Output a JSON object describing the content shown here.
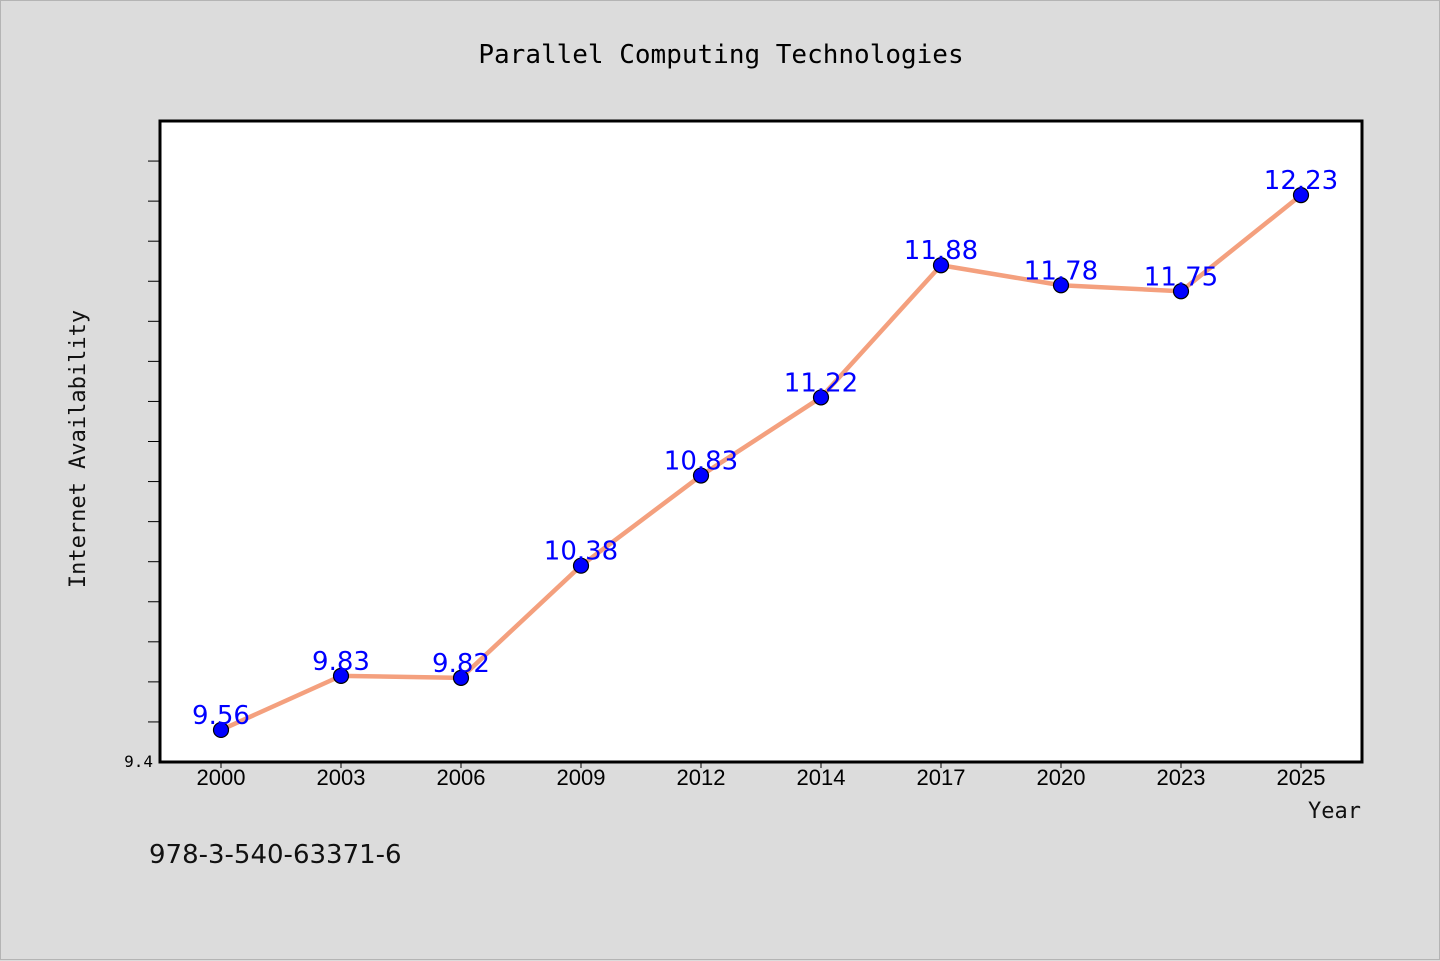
{
  "chart_data": {
    "type": "line",
    "title": "Parallel Computing Technologies",
    "xlabel": "Year",
    "ylabel": "Internet Availability",
    "categories": [
      "2000",
      "2003",
      "2006",
      "2009",
      "2012",
      "2014",
      "2017",
      "2020",
      "2023",
      "2025"
    ],
    "series": [
      {
        "values": [
          9.56,
          9.83,
          9.82,
          10.38,
          10.83,
          11.22,
          11.88,
          11.78,
          11.75,
          12.23
        ]
      }
    ],
    "data_labels": [
      "9.56",
      "9.83",
      "9.82",
      "10.38",
      "10.83",
      "11.22",
      "11.88",
      "11.78",
      "11.75",
      "12.23"
    ],
    "ylim": [
      9.4,
      12.6
    ],
    "y_tick_label": "9.4",
    "grid": false,
    "line_color": "#f4a07e",
    "marker_color": "#0000ff",
    "label_color": "#0000ff"
  },
  "footer": {
    "code": "978-3-540-63371-6"
  }
}
